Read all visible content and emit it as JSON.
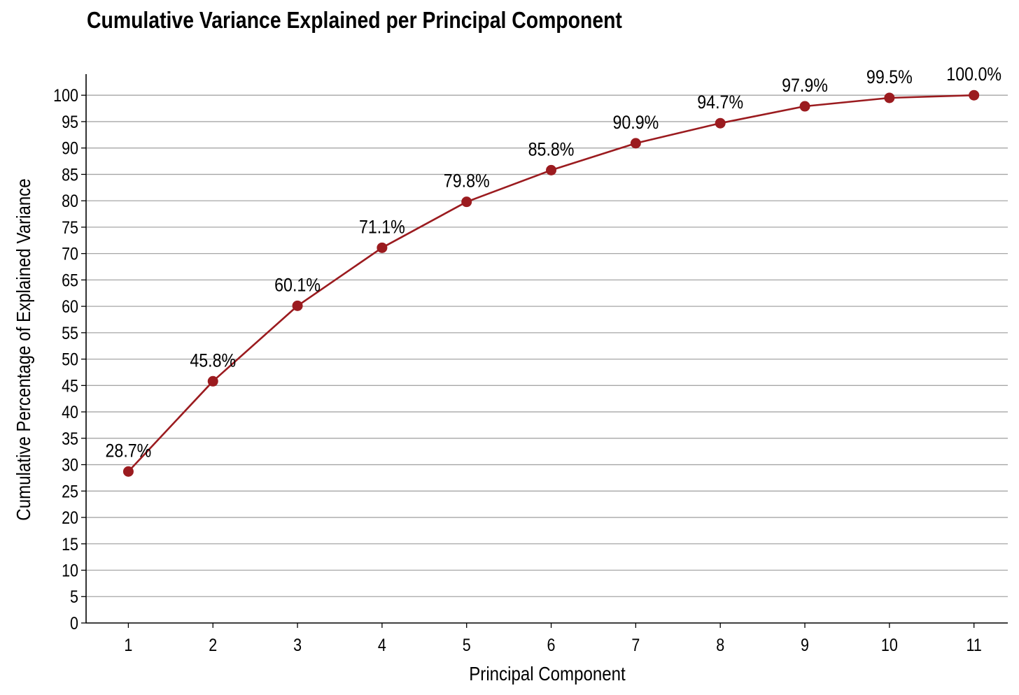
{
  "chart_data": {
    "type": "line",
    "title": "Cumulative Variance Explained per Principal Component",
    "xlabel": "Principal Component",
    "ylabel": "Cumulative Percentage of Explained Variance",
    "x": [
      1,
      2,
      3,
      4,
      5,
      6,
      7,
      8,
      9,
      10,
      11
    ],
    "values": [
      28.7,
      45.8,
      60.1,
      71.1,
      79.8,
      85.8,
      90.9,
      94.7,
      97.9,
      99.5,
      100.0
    ],
    "data_labels": [
      "28.7%",
      "45.8%",
      "60.1%",
      "71.1%",
      "79.8%",
      "85.8%",
      "90.9%",
      "94.7%",
      "97.9%",
      "99.5%",
      "100.0%"
    ],
    "x_ticks": [
      "1",
      "2",
      "3",
      "4",
      "5",
      "6",
      "7",
      "8",
      "9",
      "10",
      "11"
    ],
    "y_ticks": [
      0,
      5,
      10,
      15,
      20,
      25,
      30,
      35,
      40,
      45,
      50,
      55,
      60,
      65,
      70,
      75,
      80,
      85,
      90,
      95,
      100
    ],
    "xlim": [
      0.5,
      11.4
    ],
    "ylim": [
      0,
      104
    ],
    "grid": "horizontal",
    "line_color": "#9b1b1f",
    "grid_color": "#a6a6a6"
  }
}
